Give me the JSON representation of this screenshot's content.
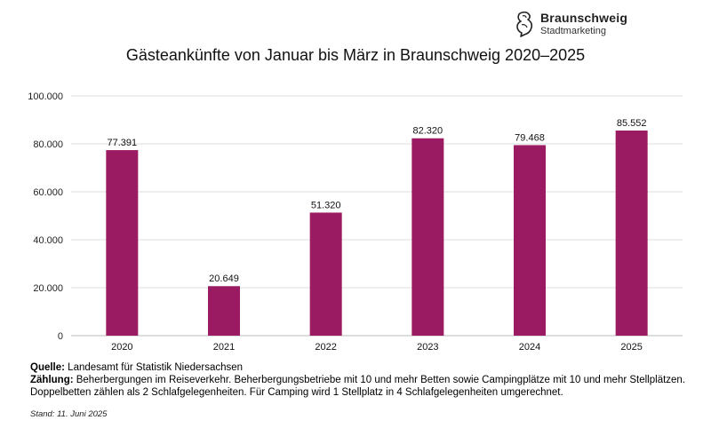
{
  "logo": {
    "name": "Braunschweig",
    "subtitle": "Stadtmarketing",
    "icon": "braunschweig-lion-icon"
  },
  "chart_data": {
    "type": "bar",
    "title": "Gästeankünfte von Januar bis März in Braunschweig 2020–2025",
    "categories": [
      "2020",
      "2021",
      "2022",
      "2023",
      "2024",
      "2025"
    ],
    "values": [
      77391,
      20649,
      51320,
      82320,
      79468,
      85552
    ],
    "value_labels": [
      "77.391",
      "20.649",
      "51.320",
      "82.320",
      "79.468",
      "85.552"
    ],
    "ylim": [
      0,
      100000
    ],
    "yticks": [
      0,
      20000,
      40000,
      60000,
      80000,
      100000
    ],
    "ytick_labels": [
      "0",
      "20.000",
      "40.000",
      "60.000",
      "80.000",
      "100.000"
    ],
    "xlabel": "",
    "ylabel": "",
    "grid": true,
    "bar_color": "#9b1b62",
    "grid_color": "#dddddd"
  },
  "notes": {
    "source_label": "Quelle:",
    "source_text": " Landesamt für Statistik Niedersachsen",
    "count_label": "Zählung:",
    "count_text": " Beherbergungen im Reiseverkehr. Beherbergungsbetriebe mit 10 und mehr Betten sowie Campingplätze mit 10 und mehr Stellplätzen. Doppelbetten zählen als 2 Schlafgelegenheiten. Für Camping wird 1 Stellplatz in 4 Schlafgelegenheiten umgerechnet.",
    "stand": "Stand: 11. Juni 2025"
  }
}
